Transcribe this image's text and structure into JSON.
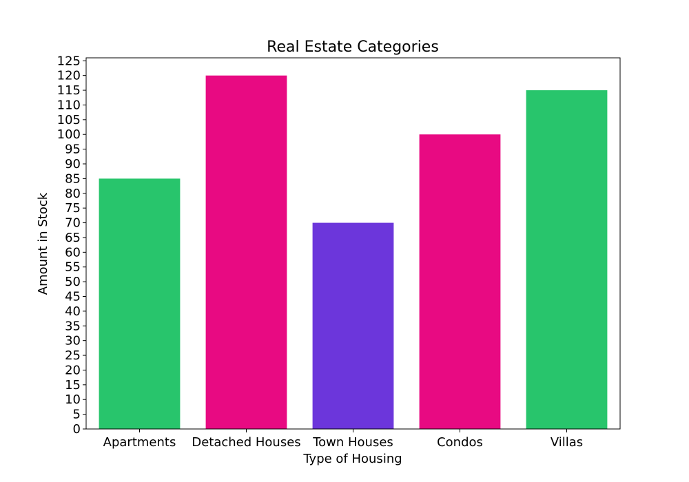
{
  "chart_data": {
    "type": "bar",
    "title": "Real Estate Categories",
    "xlabel": "Type of Housing",
    "ylabel": "Amount in Stock",
    "categories": [
      "Apartments",
      "Detached Houses",
      "Town Houses",
      "Condos",
      "Villas"
    ],
    "values": [
      85,
      120,
      70,
      100,
      115
    ],
    "colors": [
      "#28c56c",
      "#e80a82",
      "#6c36db",
      "#e80a82",
      "#28c56c"
    ],
    "ylim": [
      0,
      126
    ],
    "yticks": [
      0,
      5,
      10,
      15,
      20,
      25,
      30,
      35,
      40,
      45,
      50,
      55,
      60,
      65,
      70,
      75,
      80,
      85,
      90,
      95,
      100,
      105,
      110,
      115,
      120,
      125
    ],
    "grid": false,
    "legend": false
  }
}
